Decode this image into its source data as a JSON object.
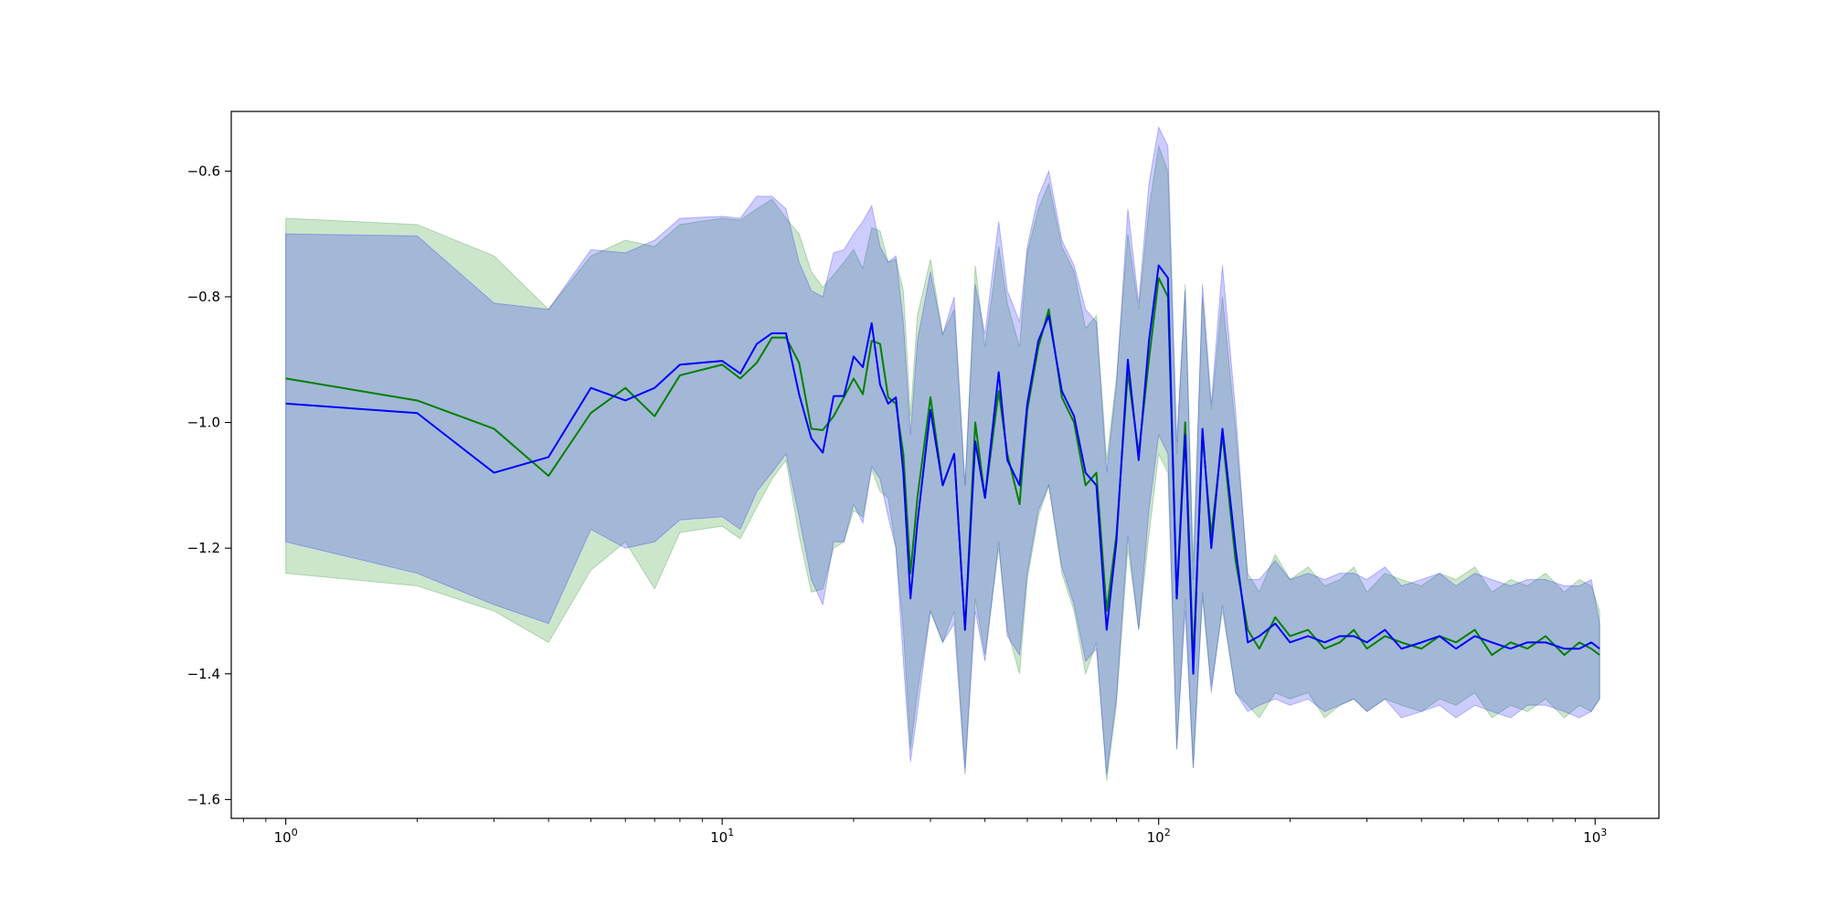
{
  "chart_data": {
    "type": "line",
    "title": "",
    "xlabel": "",
    "ylabel": "",
    "xscale": "log",
    "xlim": [
      0.75,
      1400
    ],
    "ylim": [
      -1.63,
      -0.505
    ],
    "grid": false,
    "x_ticks": [
      {
        "value": 1,
        "base": "10",
        "exp": "0"
      },
      {
        "value": 10,
        "base": "10",
        "exp": "1"
      },
      {
        "value": 100,
        "base": "10",
        "exp": "2"
      },
      {
        "value": 1000,
        "base": "10",
        "exp": "3"
      }
    ],
    "y_ticks": [
      {
        "value": -0.6,
        "label": "−0.6"
      },
      {
        "value": -0.8,
        "label": "−0.8"
      },
      {
        "value": -1.0,
        "label": "−1.0"
      },
      {
        "value": -1.2,
        "label": "−1.2"
      },
      {
        "value": -1.4,
        "label": "−1.4"
      },
      {
        "value": -1.6,
        "label": "−1.6"
      }
    ],
    "series": [
      {
        "color": "#008000",
        "band_color": "#008000",
        "band_opacity": 0.2,
        "x": [
          1,
          2,
          3,
          4,
          5,
          6,
          7,
          8,
          10,
          11,
          12,
          13,
          14,
          15,
          16,
          17,
          18,
          19,
          20,
          21,
          22,
          23,
          24,
          25,
          26,
          27,
          28,
          30,
          32,
          34,
          36,
          38,
          40,
          43,
          45,
          48,
          50,
          53,
          56,
          60,
          64,
          68,
          72,
          76,
          80,
          85,
          90,
          95,
          100,
          105,
          110,
          115,
          120,
          126,
          132,
          140,
          150,
          160,
          170,
          185,
          200,
          220,
          240,
          260,
          280,
          300,
          330,
          360,
          400,
          440,
          480,
          530,
          580,
          640,
          700,
          770,
          850,
          920,
          980,
          1024
        ],
        "values": [
          -0.93,
          -0.965,
          -1.01,
          -1.085,
          -0.985,
          -0.945,
          -0.99,
          -0.925,
          -0.908,
          -0.93,
          -0.905,
          -0.865,
          -0.865,
          -0.905,
          -1.01,
          -1.012,
          -0.99,
          -0.96,
          -0.93,
          -0.955,
          -0.87,
          -0.875,
          -0.96,
          -0.97,
          -1.05,
          -1.24,
          -1.12,
          -0.96,
          -1.1,
          -1.05,
          -1.33,
          -1.0,
          -1.12,
          -0.95,
          -1.05,
          -1.13,
          -0.98,
          -0.88,
          -0.82,
          -0.96,
          -1.0,
          -1.1,
          -1.08,
          -1.3,
          -1.18,
          -0.92,
          -1.05,
          -0.9,
          -0.77,
          -0.8,
          -1.28,
          -1.0,
          -1.38,
          -1.02,
          -1.18,
          -1.02,
          -1.22,
          -1.33,
          -1.36,
          -1.31,
          -1.34,
          -1.33,
          -1.36,
          -1.35,
          -1.33,
          -1.36,
          -1.34,
          -1.35,
          -1.36,
          -1.34,
          -1.35,
          -1.33,
          -1.37,
          -1.35,
          -1.36,
          -1.34,
          -1.37,
          -1.35,
          -1.36,
          -1.37
        ],
        "lower": [
          -1.24,
          -1.26,
          -1.3,
          -1.35,
          -1.235,
          -1.19,
          -1.265,
          -1.175,
          -1.165,
          -1.185,
          -1.135,
          -1.09,
          -1.06,
          -1.18,
          -1.27,
          -1.265,
          -1.2,
          -1.19,
          -1.14,
          -1.15,
          -1.075,
          -1.11,
          -1.12,
          -1.2,
          -1.33,
          -1.52,
          -1.43,
          -1.3,
          -1.35,
          -1.3,
          -1.55,
          -1.28,
          -1.37,
          -1.2,
          -1.33,
          -1.4,
          -1.25,
          -1.15,
          -1.1,
          -1.24,
          -1.3,
          -1.4,
          -1.35,
          -1.57,
          -1.45,
          -1.2,
          -1.33,
          -1.18,
          -1.05,
          -1.08,
          -1.52,
          -1.28,
          -1.55,
          -1.28,
          -1.42,
          -1.3,
          -1.43,
          -1.45,
          -1.47,
          -1.43,
          -1.44,
          -1.43,
          -1.47,
          -1.45,
          -1.44,
          -1.46,
          -1.44,
          -1.45,
          -1.46,
          -1.44,
          -1.45,
          -1.43,
          -1.47,
          -1.45,
          -1.46,
          -1.44,
          -1.47,
          -1.45,
          -1.46,
          -1.44
        ],
        "upper": [
          -0.675,
          -0.685,
          -0.735,
          -0.82,
          -0.735,
          -0.71,
          -0.72,
          -0.685,
          -0.675,
          -0.678,
          -0.66,
          -0.645,
          -0.675,
          -0.7,
          -0.76,
          -0.785,
          -0.765,
          -0.745,
          -0.725,
          -0.755,
          -0.69,
          -0.695,
          -0.745,
          -0.74,
          -0.79,
          -0.99,
          -0.83,
          -0.74,
          -0.86,
          -0.82,
          -1.1,
          -0.75,
          -0.88,
          -0.72,
          -0.81,
          -0.88,
          -0.73,
          -0.66,
          -0.62,
          -0.72,
          -0.76,
          -0.85,
          -0.83,
          -1.06,
          -0.93,
          -0.7,
          -0.82,
          -0.66,
          -0.56,
          -0.6,
          -1.05,
          -0.78,
          -1.22,
          -0.8,
          -0.98,
          -0.8,
          -1.01,
          -1.24,
          -1.27,
          -1.21,
          -1.25,
          -1.23,
          -1.26,
          -1.25,
          -1.23,
          -1.27,
          -1.24,
          -1.25,
          -1.26,
          -1.24,
          -1.25,
          -1.23,
          -1.27,
          -1.25,
          -1.26,
          -1.24,
          -1.27,
          -1.25,
          -1.26,
          -1.3
        ]
      },
      {
        "color": "#0000ff",
        "band_color": "#0000ff",
        "band_opacity": 0.2,
        "x": [
          1,
          2,
          3,
          4,
          5,
          6,
          7,
          8,
          10,
          11,
          12,
          13,
          14,
          15,
          16,
          17,
          18,
          19,
          20,
          21,
          22,
          23,
          24,
          25,
          26,
          27,
          28,
          30,
          32,
          34,
          36,
          38,
          40,
          43,
          45,
          48,
          50,
          53,
          56,
          60,
          64,
          68,
          72,
          76,
          80,
          85,
          90,
          95,
          100,
          105,
          110,
          115,
          120,
          126,
          132,
          140,
          150,
          160,
          170,
          185,
          200,
          220,
          240,
          260,
          280,
          300,
          330,
          360,
          400,
          440,
          480,
          530,
          580,
          640,
          700,
          770,
          850,
          920,
          980,
          1024
        ],
        "values": [
          -0.97,
          -0.985,
          -1.08,
          -1.055,
          -0.945,
          -0.965,
          -0.945,
          -0.908,
          -0.902,
          -0.922,
          -0.875,
          -0.858,
          -0.858,
          -0.955,
          -1.025,
          -1.048,
          -0.958,
          -0.958,
          -0.895,
          -0.912,
          -0.842,
          -0.94,
          -0.97,
          -0.96,
          -1.08,
          -1.28,
          -1.16,
          -0.98,
          -1.1,
          -1.05,
          -1.33,
          -1.03,
          -1.12,
          -0.92,
          -1.06,
          -1.1,
          -0.97,
          -0.87,
          -0.83,
          -0.95,
          -0.99,
          -1.08,
          -1.1,
          -1.33,
          -1.19,
          -0.9,
          -1.06,
          -0.87,
          -0.75,
          -0.77,
          -1.28,
          -1.02,
          -1.4,
          -1.01,
          -1.2,
          -1.01,
          -1.2,
          -1.35,
          -1.34,
          -1.32,
          -1.35,
          -1.34,
          -1.35,
          -1.34,
          -1.34,
          -1.35,
          -1.33,
          -1.36,
          -1.35,
          -1.34,
          -1.36,
          -1.34,
          -1.35,
          -1.36,
          -1.35,
          -1.35,
          -1.36,
          -1.36,
          -1.35,
          -1.36
        ],
        "lower": [
          -1.19,
          -1.24,
          -1.29,
          -1.32,
          -1.17,
          -1.2,
          -1.19,
          -1.155,
          -1.15,
          -1.17,
          -1.11,
          -1.08,
          -1.05,
          -1.15,
          -1.25,
          -1.29,
          -1.19,
          -1.19,
          -1.13,
          -1.16,
          -1.07,
          -1.09,
          -1.15,
          -1.2,
          -1.38,
          -1.54,
          -1.46,
          -1.3,
          -1.35,
          -1.32,
          -1.56,
          -1.3,
          -1.38,
          -1.19,
          -1.34,
          -1.37,
          -1.24,
          -1.14,
          -1.1,
          -1.23,
          -1.29,
          -1.38,
          -1.36,
          -1.56,
          -1.44,
          -1.18,
          -1.33,
          -1.14,
          -1.02,
          -1.05,
          -1.52,
          -1.3,
          -1.55,
          -1.27,
          -1.43,
          -1.29,
          -1.43,
          -1.46,
          -1.45,
          -1.44,
          -1.45,
          -1.44,
          -1.46,
          -1.45,
          -1.44,
          -1.46,
          -1.44,
          -1.47,
          -1.46,
          -1.45,
          -1.47,
          -1.45,
          -1.46,
          -1.47,
          -1.45,
          -1.45,
          -1.46,
          -1.47,
          -1.46,
          -1.44
        ],
        "upper": [
          -0.7,
          -0.703,
          -0.81,
          -0.82,
          -0.725,
          -0.73,
          -0.71,
          -0.675,
          -0.672,
          -0.675,
          -0.64,
          -0.64,
          -0.66,
          -0.745,
          -0.79,
          -0.8,
          -0.73,
          -0.725,
          -0.7,
          -0.68,
          -0.655,
          -0.72,
          -0.745,
          -0.735,
          -0.84,
          -1.02,
          -0.87,
          -0.76,
          -0.86,
          -0.8,
          -1.1,
          -0.78,
          -0.86,
          -0.68,
          -0.79,
          -0.84,
          -0.72,
          -0.64,
          -0.6,
          -0.71,
          -0.75,
          -0.82,
          -0.84,
          -1.08,
          -0.94,
          -0.66,
          -0.81,
          -0.62,
          -0.53,
          -0.56,
          -1.03,
          -0.79,
          -1.25,
          -0.78,
          -0.97,
          -0.75,
          -0.98,
          -1.25,
          -1.25,
          -1.22,
          -1.25,
          -1.24,
          -1.25,
          -1.24,
          -1.24,
          -1.25,
          -1.23,
          -1.26,
          -1.25,
          -1.24,
          -1.26,
          -1.24,
          -1.25,
          -1.26,
          -1.25,
          -1.25,
          -1.26,
          -1.26,
          -1.25,
          -1.32
        ]
      }
    ]
  }
}
